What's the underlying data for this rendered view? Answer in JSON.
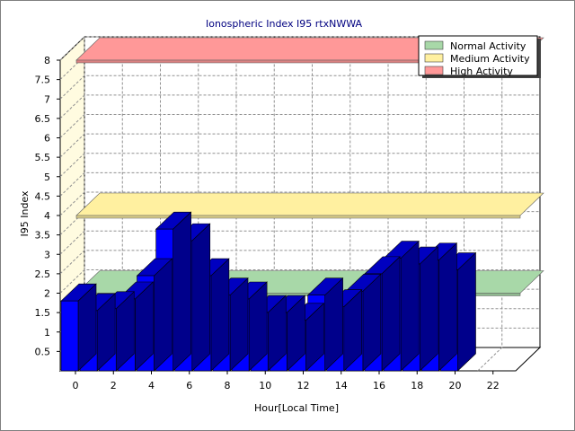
{
  "chart_data": {
    "type": "bar",
    "title": "Ionospheric Index I95 rtxNWWA",
    "xlabel": "Hour[Local Time]",
    "ylabel": "I95 Index",
    "ylim": [
      0,
      8
    ],
    "yticks": [
      "0.5",
      "1",
      "1.5",
      "2",
      "2.5",
      "3",
      "3.5",
      "4",
      "4.5",
      "5",
      "5.5",
      "6",
      "6.5",
      "7",
      "7.5",
      "8"
    ],
    "xlim": [
      0,
      24
    ],
    "xticks": [
      "0",
      "2",
      "4",
      "6",
      "8",
      "10",
      "12",
      "14",
      "16",
      "18",
      "20",
      "22"
    ],
    "grid": true,
    "legend_position": "top-right",
    "bar_color": "#0000ff",
    "x": [
      0,
      1,
      2,
      3,
      4,
      5,
      6,
      7,
      8,
      9,
      10,
      11,
      12,
      13,
      14,
      15,
      16,
      17,
      18,
      19,
      20
    ],
    "values": [
      1.8,
      1.55,
      1.6,
      1.85,
      2.45,
      3.65,
      3.35,
      2.45,
      1.95,
      1.85,
      1.5,
      1.5,
      1.3,
      1.95,
      1.65,
      2.05,
      2.5,
      2.9,
      2.75,
      2.85,
      2.6
    ],
    "bands": [
      {
        "name": "Normal Activity",
        "color": "#a8d8a8",
        "value": 2.0
      },
      {
        "name": "Medium Activity",
        "color": "#fff0a0",
        "value": 4.0
      },
      {
        "name": "High Activity",
        "color": "#ff9898",
        "value": 8.0
      }
    ]
  }
}
